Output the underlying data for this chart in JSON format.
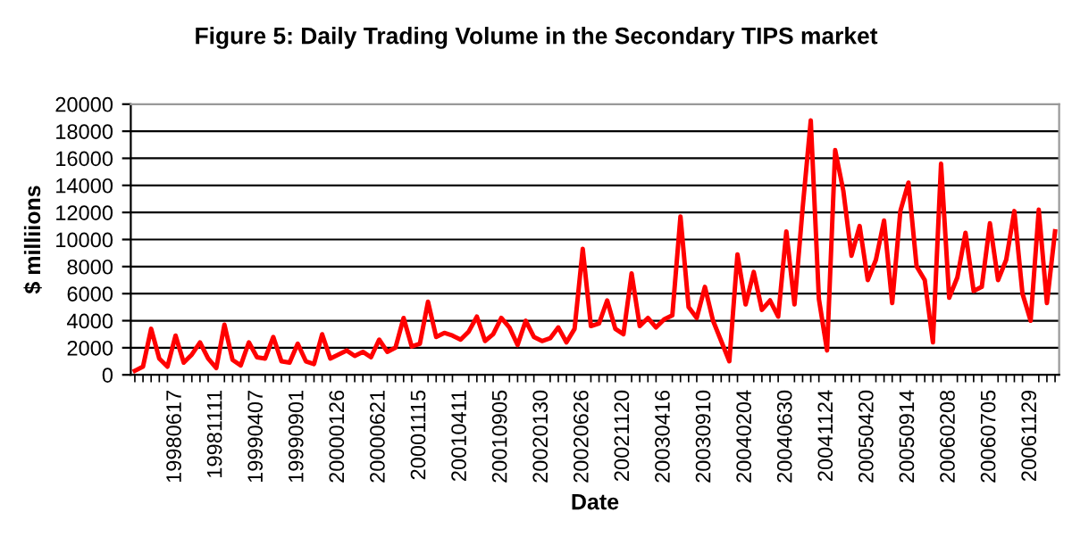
{
  "chart_data": {
    "type": "line",
    "title": "Figure 5: Daily Trading Volume in the Secondary TIPS market",
    "xlabel": "Date",
    "ylabel": "$ milliions",
    "categories": [
      null,
      null,
      null,
      null,
      null,
      "19980617",
      null,
      null,
      null,
      null,
      "19981111",
      null,
      null,
      null,
      null,
      "19990407",
      null,
      null,
      null,
      null,
      "19990901",
      null,
      null,
      null,
      null,
      "20000126",
      null,
      null,
      null,
      null,
      "20000621",
      null,
      null,
      null,
      null,
      "20001115",
      null,
      null,
      null,
      null,
      "20010411",
      null,
      null,
      null,
      null,
      "20010905",
      null,
      null,
      null,
      null,
      "20020130",
      null,
      null,
      null,
      null,
      "20020626",
      null,
      null,
      null,
      null,
      "20021120",
      null,
      null,
      null,
      null,
      "20030416",
      null,
      null,
      null,
      null,
      "20030910",
      null,
      null,
      null,
      null,
      "20040204",
      null,
      null,
      null,
      null,
      "20040630",
      null,
      null,
      null,
      null,
      "20041124",
      null,
      null,
      null,
      null,
      "20050420",
      null,
      null,
      null,
      null,
      "20050914",
      null,
      null,
      null,
      null,
      "20060208",
      null,
      null,
      null,
      null,
      "20060705",
      null,
      null,
      null,
      null,
      "20061129",
      null,
      null,
      null
    ],
    "series": [
      {
        "color": "#ff0000",
        "values": [
          300,
          600,
          3400,
          1200,
          600,
          2900,
          900,
          1500,
          2400,
          1200,
          500,
          3700,
          1100,
          700,
          2400,
          1300,
          1200,
          2800,
          1000,
          900,
          2300,
          1000,
          800,
          3000,
          1200,
          1500,
          1800,
          1400,
          1700,
          1300,
          2600,
          1700,
          2000,
          4200,
          2100,
          2300,
          5400,
          2800,
          3100,
          2900,
          2600,
          3200,
          4300,
          2500,
          3000,
          4200,
          3500,
          2200,
          4000,
          2800,
          2500,
          2700,
          3500,
          2400,
          3400,
          9300,
          3600,
          3800,
          5500,
          3400,
          3000,
          7500,
          3600,
          4200,
          3500,
          4100,
          4400,
          11700,
          5000,
          4200,
          6500,
          4000,
          2500,
          1000,
          8900,
          5200,
          7600,
          4800,
          5500,
          4300,
          10600,
          5200,
          12300,
          18800,
          5600,
          1800,
          16600,
          13600,
          8800,
          11000,
          7000,
          8500,
          11400,
          5300,
          12100,
          14200,
          8000,
          7000,
          2400,
          15600,
          5700,
          7200,
          10500,
          6200,
          6500,
          11200,
          7000,
          8500,
          12100,
          6000,
          4000,
          12200,
          5300,
          10600
        ]
      }
    ],
    "ylim": [
      0,
      20000
    ],
    "yticks": [
      0,
      2000,
      4000,
      6000,
      8000,
      10000,
      12000,
      14000,
      16000,
      18000,
      20000
    ],
    "grid": "y",
    "marker": "none",
    "line_style": "solid"
  }
}
